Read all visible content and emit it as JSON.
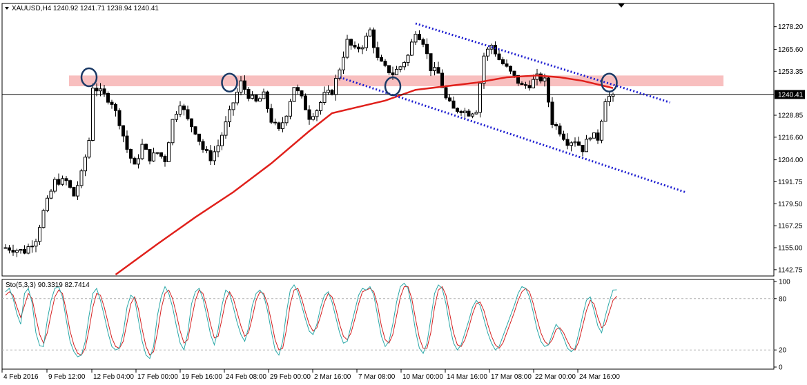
{
  "header": {
    "symbol_line": "XAUUSD,H4  1240.92 1241.71 1238.94 1240.41",
    "stoch_line": "Sto(5,3,3) 90.3319 82.7414"
  },
  "colors": {
    "bull": "#000000",
    "bear": "#000000",
    "ma": "#e0201b",
    "channel": "#1f1fd1",
    "zone": "#f7b8b8",
    "circle": "#1b3a66",
    "stoch_main": "#2aa8a8",
    "stoch_signal": "#d42020",
    "grid_dash": "#b0b0b0"
  },
  "chart_data": [
    {
      "type": "candlestick",
      "title": "XAUUSD,H4",
      "ohlc_header": {
        "open": 1240.92,
        "high": 1241.71,
        "low": 1238.94,
        "close": 1240.41
      },
      "ylim": [
        1140.0,
        1290.0
      ],
      "y_ticks": [
        "1278.20",
        "1265.60",
        "1253.35",
        "1240.41",
        "1228.85",
        "1216.60",
        "1204.00",
        "1191.75",
        "1179.50",
        "1167.25",
        "1155.00",
        "1142.75"
      ],
      "current_price": 1240.41,
      "x_labels": [
        "4 Feb 2016",
        "9 Feb 12:00",
        "12 Feb 04:00",
        "17 Feb 00:00",
        "19 Feb 16:00",
        "24 Feb 08:00",
        "29 Feb 00:00",
        "2 Mar 16:00",
        "7 Mar 08:00",
        "10 Mar 00:00",
        "14 Mar 16:00",
        "17 Mar 08:00",
        "22 Mar 00:00",
        "24 Mar 16:00"
      ],
      "price_path": [
        [
          0,
          1155
        ],
        [
          5,
          1153
        ],
        [
          8,
          1160
        ],
        [
          10,
          1175
        ],
        [
          13,
          1192
        ],
        [
          16,
          1192
        ],
        [
          18,
          1184
        ],
        [
          20,
          1196
        ],
        [
          22,
          1215
        ],
        [
          23,
          1245
        ],
        [
          26,
          1240
        ],
        [
          28,
          1236
        ],
        [
          30,
          1225
        ],
        [
          32,
          1210
        ],
        [
          34,
          1200
        ],
        [
          36,
          1212
        ],
        [
          38,
          1205
        ],
        [
          40,
          1208
        ],
        [
          42,
          1204
        ],
        [
          44,
          1226
        ],
        [
          46,
          1236
        ],
        [
          48,
          1226
        ],
        [
          50,
          1220
        ],
        [
          52,
          1210
        ],
        [
          54,
          1205
        ],
        [
          56,
          1212
        ],
        [
          58,
          1224
        ],
        [
          60,
          1236
        ],
        [
          62,
          1247
        ],
        [
          64,
          1240
        ],
        [
          66,
          1236
        ],
        [
          68,
          1240
        ],
        [
          70,
          1226
        ],
        [
          72,
          1220
        ],
        [
          74,
          1230
        ],
        [
          76,
          1245
        ],
        [
          78,
          1238
        ],
        [
          80,
          1228
        ],
        [
          82,
          1232
        ],
        [
          84,
          1240
        ],
        [
          86,
          1242
        ],
        [
          88,
          1255
        ],
        [
          90,
          1270
        ],
        [
          92,
          1265
        ],
        [
          94,
          1268
        ],
        [
          96,
          1276
        ],
        [
          98,
          1260
        ],
        [
          100,
          1255
        ],
        [
          102,
          1252
        ],
        [
          104,
          1256
        ],
        [
          106,
          1262
        ],
        [
          108,
          1276
        ],
        [
          110,
          1270
        ],
        [
          112,
          1255
        ],
        [
          114,
          1252
        ],
        [
          116,
          1238
        ],
        [
          118,
          1232
        ],
        [
          120,
          1232
        ],
        [
          122,
          1230
        ],
        [
          124,
          1232
        ],
        [
          126,
          1262
        ],
        [
          128,
          1268
        ],
        [
          130,
          1260
        ],
        [
          132,
          1255
        ],
        [
          134,
          1250
        ],
        [
          136,
          1245
        ],
        [
          138,
          1246
        ],
        [
          140,
          1250
        ],
        [
          142,
          1248
        ],
        [
          144,
          1225
        ],
        [
          146,
          1220
        ],
        [
          148,
          1214
        ],
        [
          150,
          1215
        ],
        [
          152,
          1210
        ],
        [
          154,
          1218
        ],
        [
          156,
          1216
        ],
        [
          158,
          1238
        ],
        [
          160,
          1240.41
        ]
      ],
      "moving_average": [
        [
          29,
          1140
        ],
        [
          40,
          1157
        ],
        [
          50,
          1172
        ],
        [
          60,
          1186
        ],
        [
          70,
          1202
        ],
        [
          80,
          1220
        ],
        [
          86,
          1230
        ],
        [
          92,
          1233
        ],
        [
          100,
          1237
        ],
        [
          108,
          1243
        ],
        [
          116,
          1245
        ],
        [
          124,
          1247
        ],
        [
          132,
          1250
        ],
        [
          140,
          1251
        ],
        [
          146,
          1250
        ],
        [
          152,
          1248
        ],
        [
          158,
          1245
        ],
        [
          160,
          1244
        ]
      ],
      "annotations": {
        "resistance_zone": [
          1245,
          1251
        ],
        "circles": [
          [
            22,
            1250
          ],
          [
            59,
            1247
          ],
          [
            102,
            1245
          ],
          [
            159,
            1247
          ]
        ],
        "channel_upper": [
          [
            108,
            1280
          ],
          [
            175,
            1236
          ]
        ],
        "channel_lower": [
          [
            88,
            1250
          ],
          [
            179,
            1186
          ]
        ]
      }
    },
    {
      "type": "line",
      "title": "Sto(5,3,3) 90.3319 82.7414",
      "ylim": [
        0,
        100
      ],
      "y_ticks": [
        "100",
        "80",
        "20",
        "0"
      ],
      "levels": [
        80,
        20
      ],
      "series": [
        {
          "name": "Sto(5,3,3) main",
          "values": [
            88,
            92,
            80,
            62,
            50,
            86,
            92,
            75,
            40,
            25,
            24,
            55,
            78,
            92,
            94,
            82,
            55,
            30,
            18,
            12,
            14,
            30,
            60,
            86,
            92,
            78,
            60,
            40,
            24,
            20,
            22,
            40,
            70,
            84,
            80,
            55,
            30,
            14,
            10,
            24,
            60,
            82,
            94,
            86,
            70,
            48,
            28,
            20,
            40,
            74,
            88,
            92,
            80,
            60,
            38,
            26,
            44,
            72,
            90,
            86,
            70,
            52,
            38,
            30,
            46,
            72,
            86,
            90,
            84,
            66,
            42,
            20,
            14,
            30,
            64,
            90,
            96,
            88,
            72,
            56,
            42,
            38,
            50,
            70,
            84,
            88,
            76,
            58,
            40,
            28,
            30,
            48,
            66,
            84,
            92,
            90,
            94,
            84,
            60,
            36,
            24,
            30,
            50,
            76,
            94,
            98,
            92,
            70,
            42,
            22,
            16,
            28,
            56,
            86,
            96,
            92,
            74,
            48,
            28,
            20,
            26,
            40,
            54,
            70,
            78,
            72,
            56,
            40,
            28,
            20,
            24,
            36,
            48,
            60,
            72,
            86,
            94,
            92,
            82,
            64,
            44,
            30,
            24,
            26,
            38,
            50,
            44,
            34,
            22,
            18,
            22,
            40,
            60,
            78,
            82,
            66,
            48,
            40,
            60,
            76,
            90,
            90.33
          ]
        },
        {
          "name": "Sto(5,3,3) signal",
          "values": [
            84,
            88,
            84,
            70,
            58,
            72,
            86,
            80,
            58,
            38,
            28,
            40,
            62,
            82,
            90,
            86,
            66,
            42,
            26,
            16,
            14,
            22,
            44,
            70,
            86,
            84,
            70,
            52,
            34,
            24,
            22,
            30,
            52,
            74,
            82,
            68,
            44,
            24,
            14,
            18,
            40,
            68,
            86,
            90,
            80,
            62,
            42,
            28,
            32,
            56,
            78,
            90,
            86,
            70,
            50,
            34,
            36,
            56,
            78,
            88,
            80,
            64,
            48,
            36,
            40,
            58,
            78,
            88,
            86,
            74,
            54,
            32,
            20,
            22,
            44,
            74,
            90,
            92,
            80,
            64,
            50,
            42,
            46,
            60,
            76,
            86,
            82,
            68,
            50,
            36,
            32,
            40,
            56,
            74,
            88,
            90,
            92,
            88,
            72,
            48,
            32,
            28,
            38,
            60,
            82,
            94,
            94,
            80,
            56,
            34,
            22,
            22,
            40,
            70,
            90,
            94,
            84,
            62,
            40,
            26,
            24,
            32,
            46,
            62,
            74,
            76,
            66,
            50,
            36,
            26,
            22,
            28,
            40,
            52,
            64,
            78,
            88,
            92,
            88,
            74,
            56,
            40,
            30,
            26,
            32,
            44,
            46,
            40,
            30,
            22,
            20,
            30,
            48,
            66,
            78,
            74,
            58,
            46,
            50,
            64,
            78,
            82.74
          ]
        }
      ]
    }
  ]
}
